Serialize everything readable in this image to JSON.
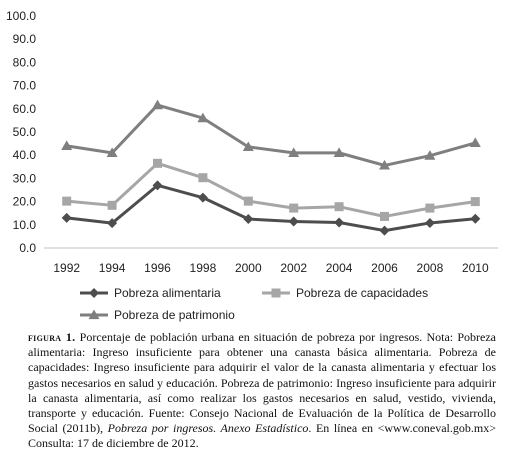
{
  "chart_data": {
    "type": "line",
    "title": "",
    "xlabel": "",
    "ylabel": "",
    "x": [
      "1992",
      "1994",
      "1996",
      "1998",
      "2000",
      "2002",
      "2004",
      "2006",
      "2008",
      "2010"
    ],
    "ylim": [
      0,
      100
    ],
    "yticks": [
      "0.0",
      "10.0",
      "20.0",
      "30.0",
      "40.0",
      "50.0",
      "60.0",
      "70.0",
      "80.0",
      "90.0",
      "100.0"
    ],
    "grid": false,
    "legend_position": "bottom",
    "series": [
      {
        "name": "Pobreza alimentaria",
        "marker": "diamond",
        "color": "#4d4d4d",
        "values": [
          13.0,
          10.7,
          27.0,
          21.7,
          12.5,
          11.4,
          11.0,
          7.5,
          10.8,
          12.6
        ]
      },
      {
        "name": "Pobreza de capacidades",
        "marker": "square",
        "color": "#a6a6a6",
        "values": [
          20.2,
          18.4,
          36.5,
          30.3,
          20.2,
          17.2,
          17.8,
          13.6,
          17.2,
          20.0
        ]
      },
      {
        "name": "Pobreza de patrimonio",
        "marker": "triangle",
        "color": "#7f7f7f",
        "values": [
          44.0,
          41.0,
          61.6,
          56.0,
          43.6,
          41.0,
          41.0,
          35.6,
          39.8,
          45.3
        ]
      }
    ]
  },
  "caption": {
    "label": "figura 1.",
    "text_1": " Porcentaje de población urbana en situación de pobreza por ingresos. Nota: Pobreza alimentaria: Ingreso insuficiente para obtener una canasta básica alimentaria. Pobreza de capacidades: Ingreso insuficiente para adquirir el valor de la canasta alimentaria y efectuar los gastos necesarios en salud y educación. Pobreza de patrimonio: Ingreso insuficiente para adquirir la canasta alimentaria, así como realizar los gastos necesarios en salud, vestido, vivienda, transporte y educación. Fuente: Consejo Nacional de Evaluación de la Política de Desarrollo Social (2011b), ",
    "italic": "Pobreza por ingresos. Anexo Estadístico",
    "text_2": ". En línea en <www.coneval.gob.mx> Consulta: 17 de diciembre de 2012."
  }
}
